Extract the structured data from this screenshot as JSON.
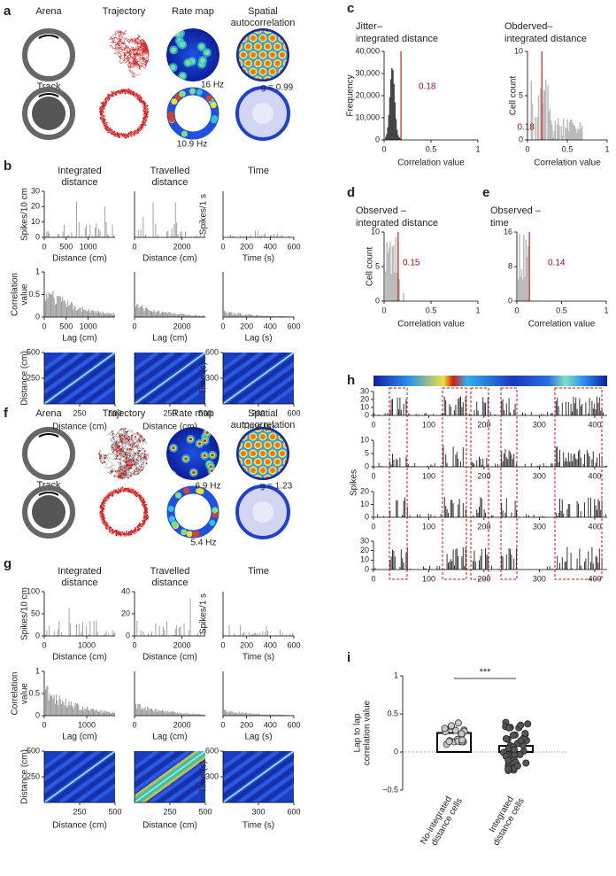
{
  "a": {
    "letter": "a",
    "headers": [
      "Arena",
      "Trajectory",
      "Rate map",
      "Spatial",
      "autocorrelation"
    ],
    "track": "Track",
    "rate1": "16 Hz",
    "g": "g = 0.99",
    "rate2": "10.9 Hz"
  },
  "b": {
    "letter": "b",
    "titles": [
      [
        "Integrated",
        "distance"
      ],
      [
        "Travelled",
        "distance"
      ],
      [
        "Time"
      ]
    ],
    "rows": [
      [
        {
          "ylabel": [
            "Spikes/10 cm"
          ],
          "yticks": [
            "0",
            "10",
            "20",
            "30"
          ],
          "xticks": [
            "0",
            "500",
            "1000"
          ],
          "xlabel": "Distance (cm)"
        },
        {
          "xticks": [
            "0",
            "2000"
          ],
          "xlabel": "Distance (cm)"
        },
        {
          "ylabel": [
            "Spikes/1 s"
          ],
          "xticks": [
            "0",
            "200",
            "400",
            "600"
          ],
          "xlabel": "Time (s)"
        }
      ],
      [
        {
          "ylabel": [
            "Correlation",
            "value"
          ],
          "yticks": [
            "0",
            "0.5",
            "1"
          ],
          "xticks": [
            "0",
            "500",
            "1000"
          ],
          "xlabel": "Lag (cm)"
        },
        {
          "xticks": [
            "0",
            "2000"
          ],
          "xlabel": "Lag (cm)"
        },
        {
          "xticks": [
            "0",
            "200",
            "400",
            "600"
          ],
          "xlabel": "Lag (s)"
        }
      ],
      [
        {
          "ylabel": [
            "Distance (cm)"
          ],
          "yticks": [
            "250",
            "500"
          ],
          "xticks": [
            "250",
            "500"
          ],
          "xlabel": "Distance (cm)"
        },
        {
          "xticks": [
            "250",
            "500"
          ],
          "xlabel": "Distance (cm)"
        },
        {
          "ylabel": [
            "Time (s)"
          ],
          "yticks": [
            "300",
            "600"
          ],
          "xticks": [
            "300",
            "600"
          ],
          "xlabel": "Time (s)"
        }
      ]
    ]
  },
  "c": {
    "letter": "c",
    "left": {
      "title": [
        "Jitter–",
        "integrated distance"
      ],
      "ylabel": [
        "Frequency"
      ],
      "yticks": [
        "0",
        "10,000",
        "20,000",
        "30,000",
        "40,000"
      ],
      "xticks": [
        "0",
        "0.5",
        "1"
      ],
      "xlabel": "Correlation value",
      "annotation": "0.18"
    },
    "right": {
      "title": [
        "Obderved–",
        "integrated distance"
      ],
      "ylabel": [
        "Cell count"
      ],
      "yticks": [
        "0",
        "5",
        "10"
      ],
      "xticks": [
        "0",
        "0.5",
        "1"
      ],
      "xlabel": "Correlation value",
      "annotation": "0.18"
    }
  },
  "d": {
    "letter": "d",
    "title": [
      "Observed –",
      "integrated distance"
    ],
    "ylabel": [
      "Cell count"
    ],
    "yticks": [
      "0",
      "5",
      "10"
    ],
    "xticks": [
      "0",
      "0.5",
      "1"
    ],
    "xlabel": "Correlation value",
    "annotation": "0.15"
  },
  "e": {
    "letter": "e",
    "title": [
      "Observed –",
      "time"
    ],
    "yticks": [
      "0",
      "8",
      "16"
    ],
    "xticks": [
      "0",
      "0.5",
      "1"
    ],
    "xlabel": "Correlation value",
    "annotation": "0.14"
  },
  "f": {
    "letter": "f",
    "headers": [
      "Arena",
      "Trajectory",
      "Rate map",
      "Spatial",
      "autocorrelation"
    ],
    "track": "Track",
    "rate1": "6.9 Hz",
    "g": "g = 1.23",
    "rate2": "5.4 Hz"
  },
  "g": {
    "letter": "g",
    "titles": [
      [
        "Integrated",
        "distance"
      ],
      [
        "Travelled",
        "distance"
      ],
      [
        "Time"
      ]
    ],
    "rows": [
      [
        {
          "ylabel": [
            "Spikes/10 cm"
          ],
          "yticks": [
            "0",
            "50",
            "100"
          ],
          "xticks": [
            "0",
            "1000"
          ],
          "xlabel": "Distance (cm)"
        },
        {
          "yticks": [
            "0",
            "20",
            "40"
          ],
          "xticks": [
            "0",
            "2000"
          ],
          "xlabel": "Distance (cm)"
        },
        {
          "ylabel": [
            "Spikes/1 s"
          ],
          "xticks": [
            "0",
            "200",
            "400",
            "600"
          ],
          "xlabel": "Time (s)"
        }
      ],
      [
        {
          "ylabel": [
            "Correlation",
            "value"
          ],
          "yticks": [
            "0",
            "0.5",
            "1"
          ],
          "xticks": [
            "0",
            "1000"
          ],
          "xlabel": "Lag (cm)"
        },
        {
          "xticks": [
            "0",
            "2000"
          ],
          "xlabel": "Lag (cm)"
        },
        {
          "xticks": [
            "0",
            "200",
            "400",
            "600"
          ],
          "xlabel": "Lag (s)"
        }
      ],
      [
        {
          "ylabel": [
            "Distance (cm)"
          ],
          "yticks": [
            "250",
            "500"
          ],
          "xticks": [
            "250",
            "500"
          ],
          "xlabel": "Distance (cm)"
        },
        {
          "xticks": [
            "250",
            "500"
          ],
          "xlabel": "Distance (cm)"
        },
        {
          "ylabel": [
            "Time (s)"
          ],
          "yticks": [
            "300",
            "600"
          ],
          "xticks": [
            "300",
            "600"
          ],
          "xlabel": "Time (s)"
        }
      ]
    ]
  },
  "h": {
    "letter": "h",
    "ylabel": "Spikes",
    "rows": [
      {
        "yticks": [
          "0",
          "10",
          "20",
          "30"
        ],
        "xticks": [
          "0",
          "100",
          "200",
          "300",
          "400"
        ]
      },
      {
        "yticks": [
          "0",
          "5",
          "10"
        ],
        "xticks": [
          "0",
          "100",
          "200",
          "300",
          "400"
        ]
      },
      {
        "yticks": [
          "0",
          "10",
          "20"
        ],
        "xticks": [
          "0",
          "100",
          "200",
          "300",
          "400"
        ]
      },
      {
        "yticks": [
          "0",
          "10",
          "20",
          "30"
        ],
        "xticks": [
          "0",
          "100",
          "200",
          "300",
          "400"
        ]
      }
    ]
  },
  "i": {
    "letter": "i",
    "ylabel": [
      "Lap to lap",
      "correlation value"
    ],
    "yticks": [
      "−0.5",
      "0",
      "0.5",
      "1"
    ],
    "significance": "***",
    "categories": [
      [
        "No-integrated",
        "distance cells"
      ],
      [
        "Integrated",
        "distance cells"
      ]
    ]
  }
}
